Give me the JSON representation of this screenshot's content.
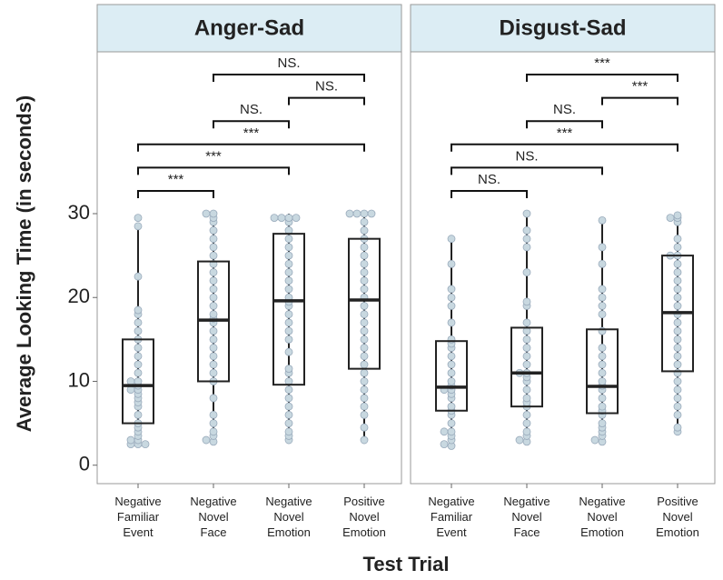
{
  "chart_data": [
    {
      "type": "box",
      "title": "Anger-Sad",
      "ylabel": "Average Looking Time (in seconds)",
      "xlabel": "Test Trial",
      "ylim": [
        -2.2,
        49.3
      ],
      "yticks": [
        0,
        10,
        20,
        30
      ],
      "categories": [
        [
          "Negative",
          "Familiar",
          "Event"
        ],
        [
          "Negative",
          "Novel",
          "Face"
        ],
        [
          "Negative",
          "Novel",
          "Emotion"
        ],
        [
          "Positive",
          "Novel",
          "Emotion"
        ]
      ],
      "boxes": [
        {
          "low": 2.5,
          "q1": 5,
          "median": 9.5,
          "q3": 15,
          "high": 28.7
        },
        {
          "low": 2.8,
          "q1": 10,
          "median": 17.3,
          "q3": 24.3,
          "high": 30
        },
        {
          "low": 3,
          "q1": 9.6,
          "median": 19.6,
          "q3": 27.6,
          "high": 30
        },
        {
          "low": 3,
          "q1": 11.5,
          "median": 19.7,
          "q3": 27,
          "high": 30
        }
      ],
      "dots": [
        [
          2.5,
          2.5,
          2.5,
          3,
          3,
          3.5,
          4,
          4.5,
          5,
          6,
          7,
          7.5,
          8,
          8.5,
          9,
          9,
          9.5,
          10,
          10,
          11,
          12,
          13,
          14,
          15,
          16,
          17,
          18,
          18.5,
          22.5,
          28.5,
          29.5
        ],
        [
          2.8,
          3,
          3.5,
          4,
          5,
          6,
          8,
          10,
          11,
          12,
          13,
          14,
          15,
          16,
          17,
          17.5,
          18,
          19,
          20,
          21,
          22,
          23,
          24,
          25,
          26,
          27,
          28,
          29,
          29.5,
          30,
          30
        ],
        [
          3,
          3.5,
          4,
          5,
          6,
          7,
          8,
          9,
          10,
          11,
          11.5,
          13.5,
          15,
          16,
          17,
          18,
          19,
          19.5,
          20,
          21,
          22,
          23,
          24,
          25,
          26,
          27,
          28,
          29,
          29.5,
          29.5,
          29.5,
          29.5
        ],
        [
          3,
          4.5,
          6,
          7,
          8,
          9,
          10,
          11,
          12,
          13,
          14,
          15,
          16,
          17,
          18,
          19,
          20,
          21,
          22,
          23,
          24,
          25,
          26,
          27,
          28,
          29,
          30,
          30,
          30,
          30
        ]
      ],
      "comparisons": [
        {
          "from": 1,
          "to": 2,
          "label": "***"
        },
        {
          "from": 1,
          "to": 3,
          "label": "***"
        },
        {
          "from": 1,
          "to": 4,
          "label": "***"
        },
        {
          "from": 2,
          "to": 3,
          "label": "NS."
        },
        {
          "from": 3,
          "to": 4,
          "label": "NS."
        },
        {
          "from": 2,
          "to": 4,
          "label": "NS."
        }
      ],
      "dot_color": "#c8d8e0",
      "strip_color": "#dcedf4"
    },
    {
      "type": "box",
      "title": "Disgust-Sad",
      "ylim": [
        -2.2,
        49.3
      ],
      "categories": [
        [
          "Negative",
          "Familiar",
          "Event"
        ],
        [
          "Negative",
          "Novel",
          "Face"
        ],
        [
          "Negative",
          "Novel",
          "Emotion"
        ],
        [
          "Positive",
          "Novel",
          "Emotion"
        ]
      ],
      "boxes": [
        {
          "low": 2.3,
          "q1": 6.5,
          "median": 9.3,
          "q3": 14.8,
          "high": 27
        },
        {
          "low": 2.8,
          "q1": 7,
          "median": 11,
          "q3": 16.4,
          "high": 30
        },
        {
          "low": 2.8,
          "q1": 6.2,
          "median": 9.4,
          "q3": 16.2,
          "high": 29.2
        },
        {
          "low": 4,
          "q1": 11.2,
          "median": 18.2,
          "q3": 25,
          "high": 29.8
        }
      ],
      "dots": [
        [
          2.3,
          2.5,
          3,
          3.5,
          4,
          4,
          5,
          6,
          6.5,
          7,
          8,
          8.5,
          9,
          9,
          9.5,
          10,
          11,
          12,
          13,
          14,
          14.5,
          15,
          17,
          19,
          20,
          21,
          24,
          27
        ],
        [
          2.8,
          3,
          3.5,
          4,
          5,
          6,
          7,
          7.5,
          8,
          9,
          10,
          10.5,
          11,
          11,
          12,
          13,
          14,
          15,
          16,
          17,
          19,
          19.5,
          23,
          26,
          27,
          28,
          30
        ],
        [
          2.8,
          3,
          3.5,
          4,
          4.5,
          5,
          6,
          6.5,
          7,
          8,
          9,
          9.5,
          10,
          11,
          12,
          13,
          14,
          16,
          18,
          19,
          20,
          21,
          24,
          26,
          29.2
        ],
        [
          4,
          4.5,
          6,
          7,
          8,
          9,
          10,
          11,
          12,
          13,
          14,
          15,
          16,
          17,
          18,
          19,
          20,
          21,
          22,
          23,
          24,
          25,
          25,
          26,
          27,
          29,
          29.5,
          29.5,
          29.8
        ]
      ],
      "comparisons": [
        {
          "from": 1,
          "to": 2,
          "label": "NS."
        },
        {
          "from": 1,
          "to": 3,
          "label": "NS."
        },
        {
          "from": 1,
          "to": 4,
          "label": "***"
        },
        {
          "from": 2,
          "to": 3,
          "label": "NS."
        },
        {
          "from": 3,
          "to": 4,
          "label": "***"
        },
        {
          "from": 2,
          "to": 4,
          "label": "***"
        }
      ],
      "dot_color": "#c8d8e0",
      "strip_color": "#dcedf4"
    }
  ]
}
